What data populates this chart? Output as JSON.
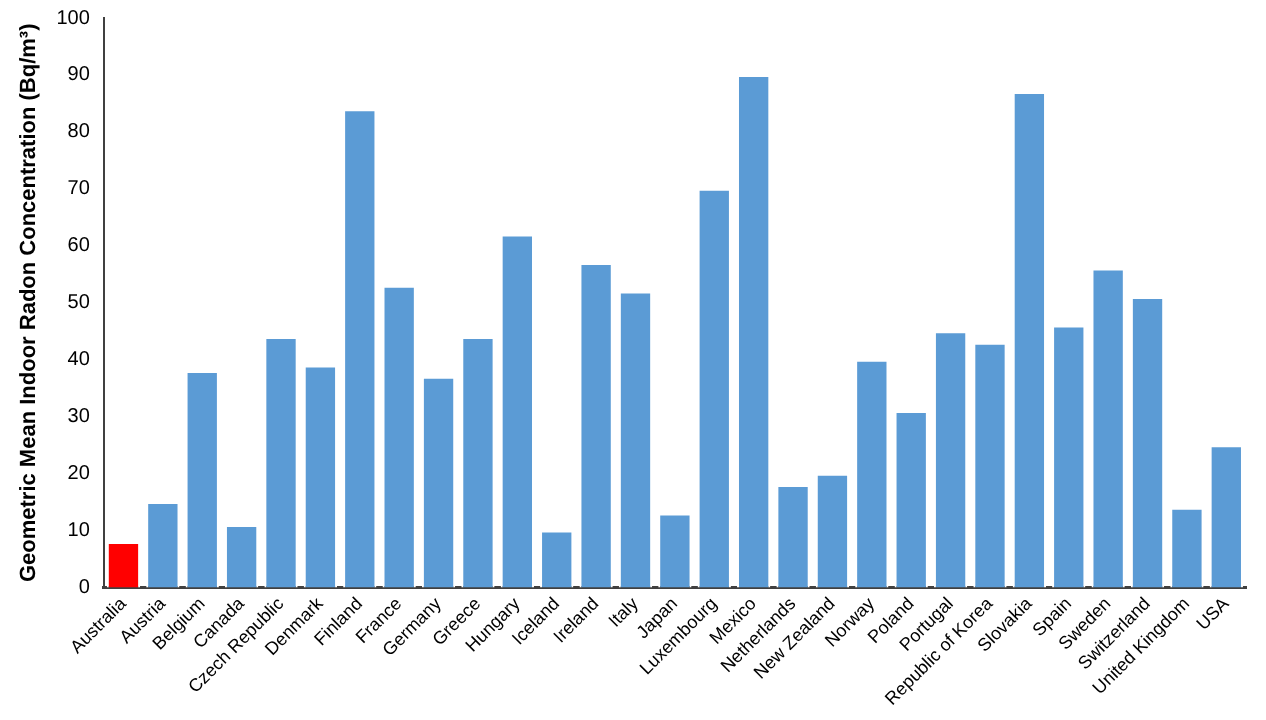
{
  "chart_data": {
    "type": "bar",
    "ylabel": "Geometric Mean Indoor Radon Concentration (Bq/m³)",
    "categories": [
      "Australia",
      "Austria",
      "Belgium",
      "Canada",
      "Czech Republic",
      "Denmark",
      "Finland",
      "France",
      "Germany",
      "Greece",
      "Hungary",
      "Iceland",
      "Ireland",
      "Italy",
      "Japan",
      "Luxembourg",
      "Mexico",
      "Netherlands",
      "New Zealand",
      "Norway",
      "Poland",
      "Portugal",
      "Republic of Korea",
      "Slovakia",
      "Spain",
      "Sweden",
      "Switzerland",
      "United Kingdom",
      "USA"
    ],
    "values": [
      8,
      15,
      38,
      11,
      44,
      39,
      84,
      53,
      37,
      44,
      62,
      10,
      57,
      52,
      13,
      70,
      90,
      18,
      20,
      40,
      31,
      45,
      43,
      87,
      46,
      56,
      51,
      14,
      25
    ],
    "colors": [
      "#ff0000",
      "#5b9bd5",
      "#5b9bd5",
      "#5b9bd5",
      "#5b9bd5",
      "#5b9bd5",
      "#5b9bd5",
      "#5b9bd5",
      "#5b9bd5",
      "#5b9bd5",
      "#5b9bd5",
      "#5b9bd5",
      "#5b9bd5",
      "#5b9bd5",
      "#5b9bd5",
      "#5b9bd5",
      "#5b9bd5",
      "#5b9bd5",
      "#5b9bd5",
      "#5b9bd5",
      "#5b9bd5",
      "#5b9bd5",
      "#5b9bd5",
      "#5b9bd5",
      "#5b9bd5",
      "#5b9bd5",
      "#5b9bd5",
      "#5b9bd5",
      "#5b9bd5"
    ],
    "ylim": [
      0,
      100
    ],
    "yticks": [
      0,
      10,
      20,
      30,
      40,
      50,
      60,
      70,
      80,
      90,
      100
    ],
    "grid": false,
    "legend": false
  }
}
